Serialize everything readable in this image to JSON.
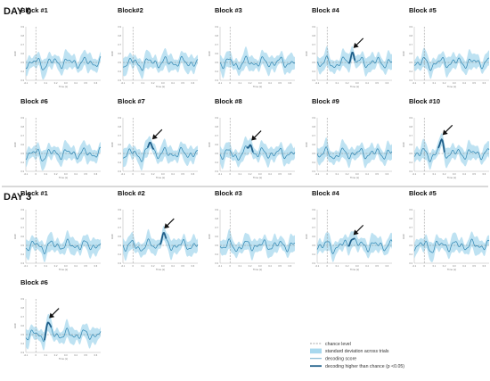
{
  "colors": {
    "band": "#a8d8ee",
    "score": "#2f86b2",
    "significant": "#1f5f8a",
    "chance": "#888888",
    "arrow": "#111111"
  },
  "days": [
    {
      "label": "DAY 0",
      "blocks": [
        {
          "title": "Block #1",
          "arrow": false,
          "peak_time": null
        },
        {
          "title": "Block#2",
          "arrow": false,
          "peak_time": null
        },
        {
          "title": "Block #3",
          "arrow": false,
          "peak_time": null
        },
        {
          "title": "Block #4",
          "arrow": true,
          "peak_time": 0.25
        },
        {
          "title": "Block #5",
          "arrow": false,
          "peak_time": null
        },
        {
          "title": "Block #6",
          "arrow": false,
          "peak_time": null
        },
        {
          "title": "Block #7",
          "arrow": true,
          "peak_time": 0.18
        },
        {
          "title": "Block #8",
          "arrow": true,
          "peak_time": 0.2
        },
        {
          "title": "Block #9",
          "arrow": false,
          "peak_time": null
        },
        {
          "title": "Block #10",
          "arrow": true,
          "peak_time": 0.17
        }
      ]
    },
    {
      "label": "DAY 3",
      "blocks": [
        {
          "title": "Block #1",
          "arrow": false,
          "peak_time": null
        },
        {
          "title": "Block #2",
          "arrow": true,
          "peak_time": 0.3
        },
        {
          "title": "Block #3",
          "arrow": false,
          "peak_time": null
        },
        {
          "title": "Block #4",
          "arrow": true,
          "peak_time": 0.25
        },
        {
          "title": "Block #5",
          "arrow": false,
          "peak_time": null
        },
        {
          "title": "Block #6",
          "arrow": true,
          "peak_time": 0.12
        }
      ]
    }
  ],
  "chart_data": {
    "type": "line",
    "layout": "small multiples, 5 panels per row",
    "x_ticks": [
      "-0.1",
      "0",
      "0.1",
      "0.2",
      "0.3",
      "0.4",
      "0.5",
      "0.6"
    ],
    "y_ticks": [
      "0.3",
      "0.4",
      "0.5",
      "0.6",
      "0.7",
      "0.8",
      "0.9"
    ],
    "xlim": [
      -0.1,
      0.65
    ],
    "ylim": [
      0.3,
      0.9
    ],
    "xlabel": "Time (s)",
    "ylabel": "AUC",
    "chance_level": 0.5,
    "grid": false,
    "legend_position": "bottom-right",
    "legend": [
      {
        "kind": "dashed",
        "label": "chance level"
      },
      {
        "kind": "band",
        "label": "standard deviation across trials"
      },
      {
        "kind": "thin",
        "label": "decoding score"
      },
      {
        "kind": "thick",
        "label": "decoding higher than chance (p <0.05)"
      }
    ]
  }
}
